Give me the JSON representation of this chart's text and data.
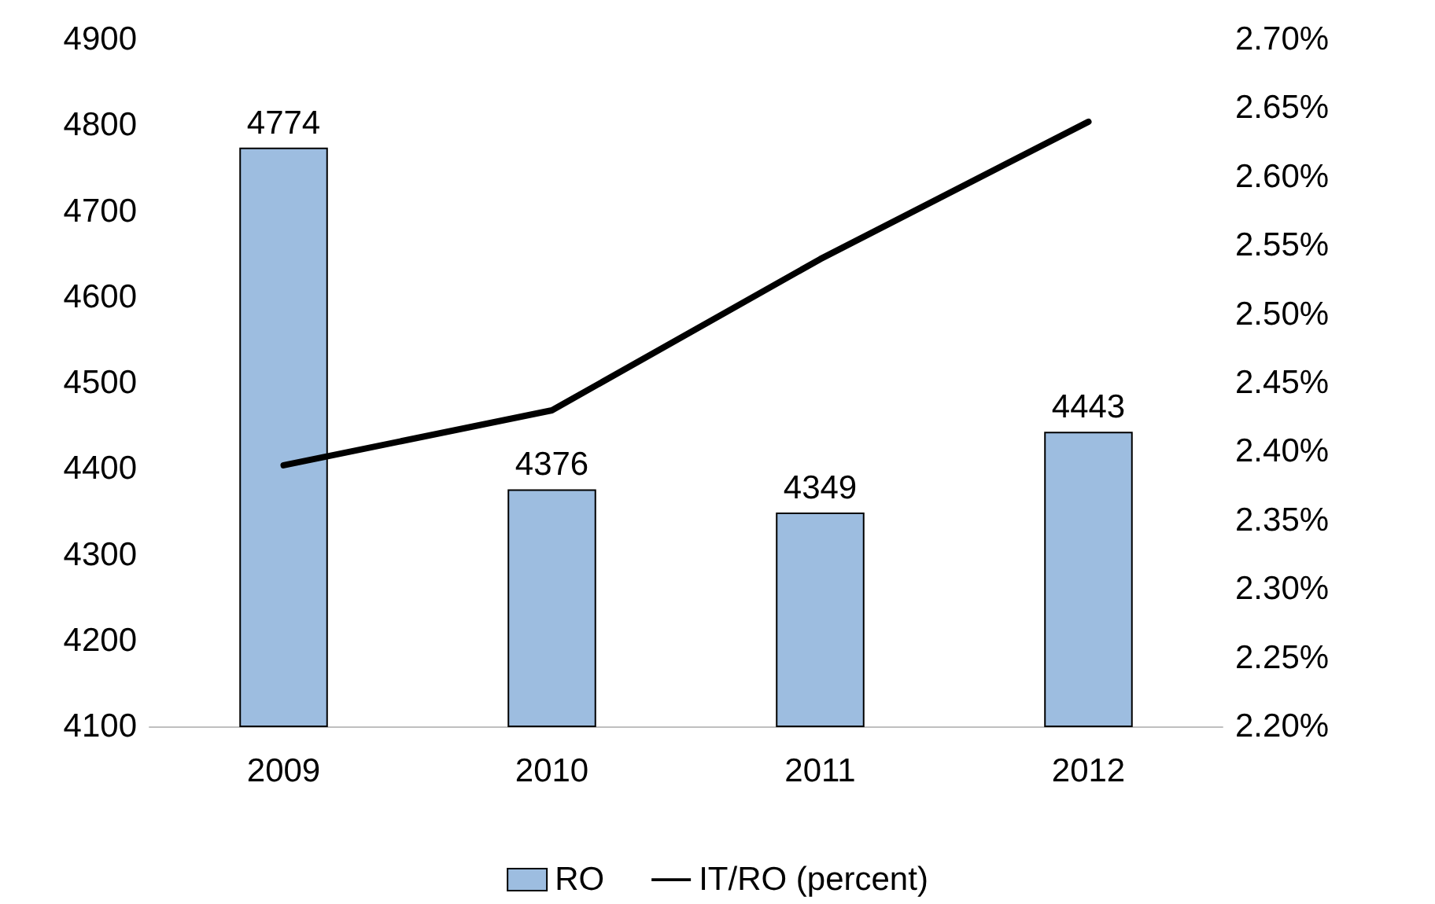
{
  "chart_data": {
    "type": "bar",
    "categories": [
      "2009",
      "2010",
      "2011",
      "2012"
    ],
    "series": [
      {
        "name": "RO",
        "color": "#9dbde0",
        "values": [
          4774,
          4376,
          4349,
          4443
        ],
        "value_labels": [
          "4774",
          "4376",
          "4349",
          "4443"
        ]
      },
      {
        "name": "IT/RO (percent)",
        "type": "line",
        "axis": "y2",
        "color": "#000000",
        "values": [
          2.39,
          2.43,
          2.54,
          2.64
        ]
      }
    ],
    "ylim": [
      4100,
      4900
    ],
    "yticks": [
      4100,
      4200,
      4300,
      4400,
      4500,
      4600,
      4700,
      4800,
      4900
    ],
    "y2lim": [
      2.2,
      2.7
    ],
    "y2ticks": [
      {
        "value": 2.2,
        "label": "2.20%"
      },
      {
        "value": 2.25,
        "label": "2.25%"
      },
      {
        "value": 2.3,
        "label": "2.30%"
      },
      {
        "value": 2.35,
        "label": "2.35%"
      },
      {
        "value": 2.4,
        "label": "2.40%"
      },
      {
        "value": 2.45,
        "label": "2.45%"
      },
      {
        "value": 2.5,
        "label": "2.50%"
      },
      {
        "value": 2.55,
        "label": "2.55%"
      },
      {
        "value": 2.6,
        "label": "2.60%"
      },
      {
        "value": 2.65,
        "label": "2.65%"
      },
      {
        "value": 2.7,
        "label": "2.70%"
      }
    ],
    "grid": false,
    "legend": "bottom",
    "marker": "none",
    "line_style": "solid"
  }
}
